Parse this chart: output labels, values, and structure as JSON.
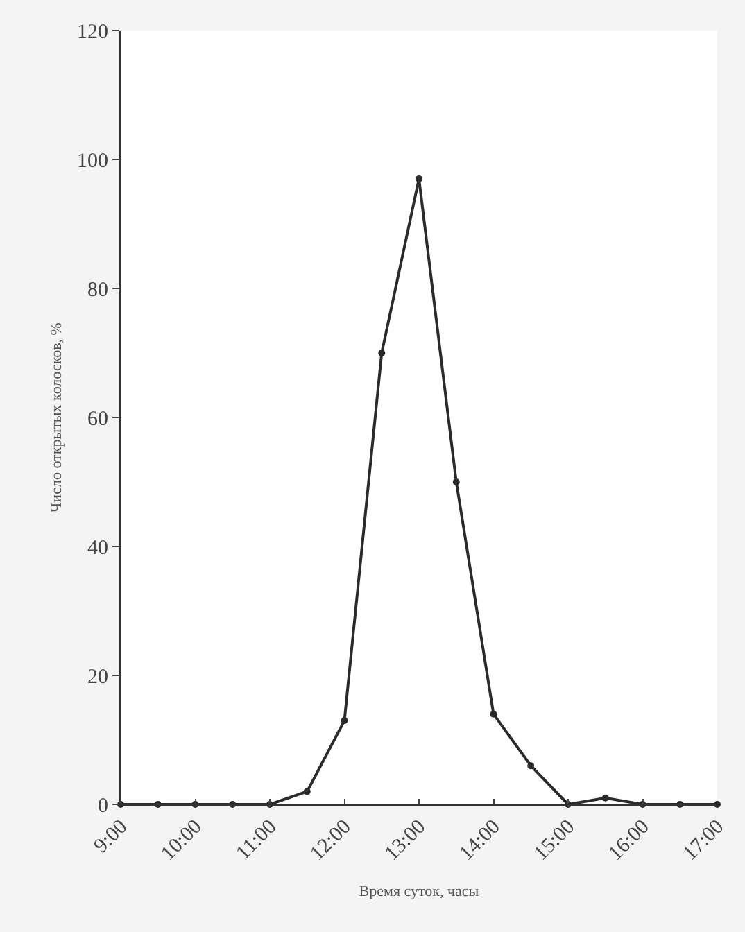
{
  "chart_data": {
    "type": "line",
    "xlabel": "Время суток, часы",
    "ylabel": "Число открытых колосков, %",
    "x": [
      9,
      9.5,
      10,
      10.5,
      11,
      11.5,
      12,
      12.5,
      13,
      13.5,
      14,
      14.5,
      15,
      15.5,
      16,
      16.5,
      17
    ],
    "series": [
      {
        "color": "#2b2b2b",
        "values": [
          0,
          0,
          0,
          0,
          0,
          2,
          13,
          70,
          97,
          50,
          14,
          6,
          0,
          1,
          0,
          0,
          0
        ]
      }
    ],
    "xlim": [
      9,
      17
    ],
    "xticks": [
      {
        "value": 9,
        "label": "9:00"
      },
      {
        "value": 10,
        "label": "10:00"
      },
      {
        "value": 11,
        "label": "11:00"
      },
      {
        "value": 12,
        "label": "12:00"
      },
      {
        "value": 13,
        "label": "13:00"
      },
      {
        "value": 14,
        "label": "14:00"
      },
      {
        "value": 15,
        "label": "15:00"
      },
      {
        "value": 16,
        "label": "16:00"
      },
      {
        "value": 17,
        "label": "17:00"
      }
    ],
    "ylim": [
      0,
      120
    ],
    "yticks": [
      0,
      20,
      40,
      60,
      80,
      100,
      120
    ],
    "legend": false,
    "marker": "circle",
    "line_style": "solid"
  }
}
